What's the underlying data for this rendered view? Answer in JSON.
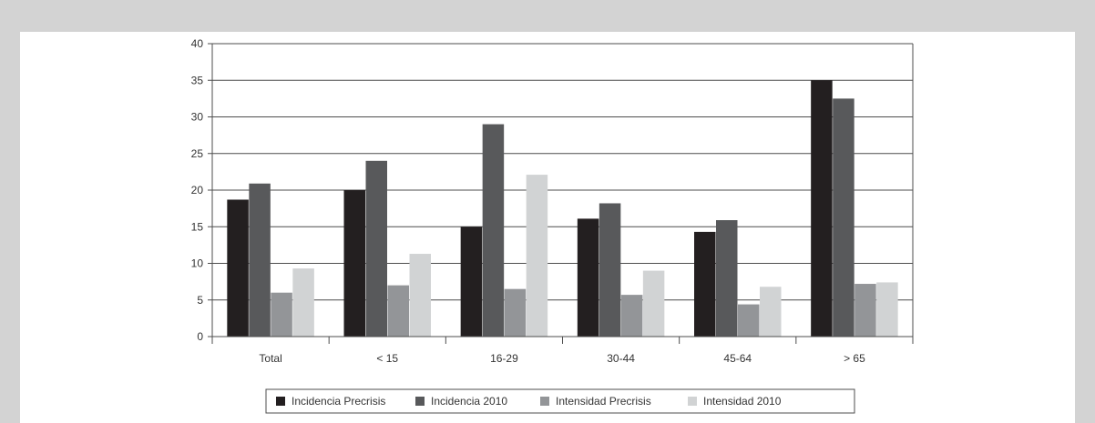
{
  "chart_data": {
    "type": "bar",
    "categories": [
      "Total",
      "< 15",
      "16-29",
      "30-44",
      "45-64",
      "> 65"
    ],
    "series": [
      {
        "name": "Incidencia Precrisis",
        "values": [
          18.7,
          20.0,
          15.0,
          16.1,
          14.3,
          35.0
        ],
        "color": "#231f20"
      },
      {
        "name": "Incidencia 2010",
        "values": [
          20.9,
          24.0,
          29.0,
          18.2,
          15.9,
          32.5
        ],
        "color": "#58595b"
      },
      {
        "name": "Intensidad Precrisis",
        "values": [
          6.0,
          7.0,
          6.5,
          5.7,
          4.4,
          7.2
        ],
        "color": "#939598"
      },
      {
        "name": "Intensidad 2010",
        "values": [
          9.3,
          11.3,
          22.1,
          9.0,
          6.8,
          7.4
        ],
        "color": "#d1d3d4"
      }
    ],
    "y_ticks": [
      "0",
      "5",
      "10",
      "15",
      "20",
      "25",
      "30",
      "35",
      "40"
    ],
    "ylim": [
      0,
      40
    ],
    "grid": true,
    "legend_position": "bottom"
  }
}
